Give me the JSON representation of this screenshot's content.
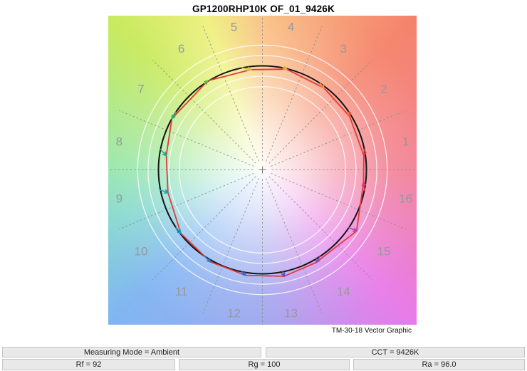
{
  "title": "GP1200RHP10K OF_01_9426K",
  "caption": "TM-30-18 Vector Graphic",
  "info_bar": {
    "measuring_mode": "Measuring Mode = Ambient",
    "cct": "CCT = 9426K",
    "rf": "Rf = 92",
    "rg": "Rg = 100",
    "ra": "Ra = 96.0"
  },
  "chart_data": {
    "type": "line",
    "subtype": "tm30-18-color-vector-graphic (polar hue circle)",
    "title": "GP1200RHP10K OF_01_9426K",
    "caption": "TM-30-18 Vector Graphic",
    "metrics": {
      "Rf": 92,
      "Rg": 100,
      "Ra": 96.0,
      "CCT": "9426K",
      "measuring_mode": "Ambient"
    },
    "legend": "black circle = reference illuminant (100% chroma), red polygon = test source, arrows = per-bin chroma/hue shift",
    "grid_circles_pct": [
      80,
      90,
      110,
      120
    ],
    "reference": {
      "radius_pct": 100,
      "color": "#141414"
    },
    "test_color": "#e23b3b",
    "label_radius": 205,
    "label_color": "#97999c",
    "bins": [
      {
        "bin": 1,
        "center_deg": 11.25,
        "angle_deg": 8,
        "chroma_pct": 98.5,
        "color": "#e23a44"
      },
      {
        "bin": 2,
        "center_deg": 33.75,
        "angle_deg": 31.5,
        "chroma_pct": 98.3,
        "color": "#ee5c3a"
      },
      {
        "bin": 3,
        "center_deg": 56.25,
        "angle_deg": 53,
        "chroma_pct": 98.5,
        "color": "#f58b31"
      },
      {
        "bin": 4,
        "center_deg": 78.75,
        "angle_deg": 76.5,
        "chroma_pct": 99.5,
        "color": "#f5a73a"
      },
      {
        "bin": 5,
        "center_deg": 101.25,
        "angle_deg": 96.5,
        "chroma_pct": 97,
        "color": "#c2c93b"
      },
      {
        "bin": 6,
        "center_deg": 123.75,
        "angle_deg": 121.5,
        "chroma_pct": 100.5,
        "color": "#5eb944"
      },
      {
        "bin": 7,
        "center_deg": 146.25,
        "angle_deg": 150.5,
        "chroma_pct": 100,
        "color": "#2fae6e"
      },
      {
        "bin": 8,
        "center_deg": 168.75,
        "angle_deg": 171.5,
        "chroma_pct": 93.5,
        "color": "#1ba78f"
      },
      {
        "bin": 9,
        "center_deg": 191.25,
        "angle_deg": 193.5,
        "chroma_pct": 93.5,
        "color": "#18a2a9"
      },
      {
        "bin": 10,
        "center_deg": 213.75,
        "angle_deg": 218,
        "chroma_pct": 99.5,
        "color": "#2395bd"
      },
      {
        "bin": 11,
        "center_deg": 236.25,
        "angle_deg": 240.5,
        "chroma_pct": 101.7,
        "color": "#3b79c5"
      },
      {
        "bin": 12,
        "center_deg": 258.75,
        "angle_deg": 261,
        "chroma_pct": 102.7,
        "color": "#4763c1"
      },
      {
        "bin": 13,
        "center_deg": 281.25,
        "angle_deg": 281.5,
        "chroma_pct": 104.5,
        "color": "#5c55bd"
      },
      {
        "bin": 14,
        "center_deg": 303.75,
        "angle_deg": 300,
        "chroma_pct": 103,
        "color": "#8550b5"
      },
      {
        "bin": 15,
        "center_deg": 326.25,
        "angle_deg": 327,
        "chroma_pct": 108,
        "color": "#a94bb3"
      },
      {
        "bin": 16,
        "center_deg": 348.75,
        "angle_deg": 353,
        "chroma_pct": 98,
        "color": "#d83e74"
      }
    ]
  }
}
